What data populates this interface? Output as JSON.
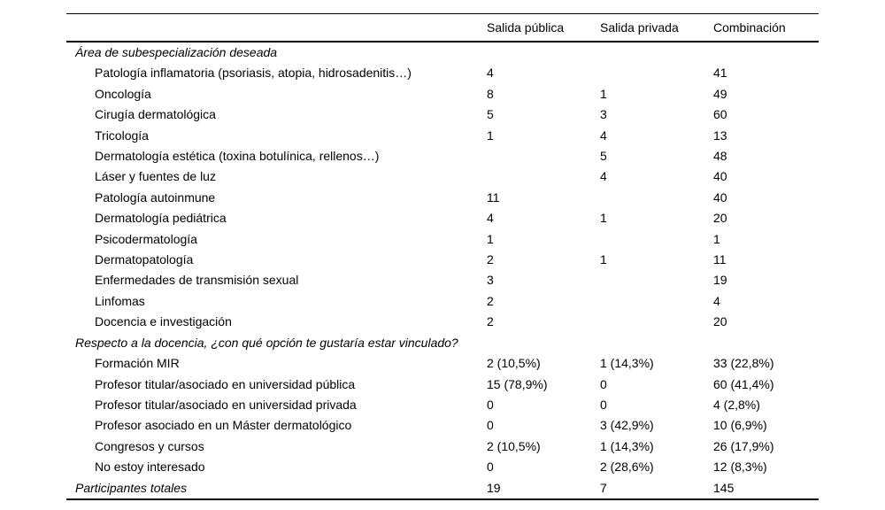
{
  "table": {
    "columns": [
      "Salida pública",
      "Salida privada",
      "Combinación"
    ],
    "sections": [
      {
        "header": "Área de subespecialización deseada",
        "rows": [
          [
            "Patología inflamatoria (psoriasis, atopia, hidrosadenitis…)",
            "4",
            "",
            "41"
          ],
          [
            "Oncología",
            "8",
            "1",
            "49"
          ],
          [
            "Cirugía dermatológica",
            "5",
            "3",
            "60"
          ],
          [
            "Tricología",
            "1",
            "4",
            "13"
          ],
          [
            "Dermatología estética (toxina botulínica, rellenos…)",
            "",
            "5",
            "48"
          ],
          [
            "Láser y fuentes de luz",
            "",
            "4",
            "40"
          ],
          [
            "Patología autoinmune",
            "11",
            "",
            "40"
          ],
          [
            "Dermatología pediátrica",
            "4",
            "1",
            "20"
          ],
          [
            "Psicodermatología",
            "1",
            "",
            "1"
          ],
          [
            "Dermatopatología",
            "2",
            "1",
            "11"
          ],
          [
            "Enfermedades de transmisión sexual",
            "3",
            "",
            "19"
          ],
          [
            "Linfomas",
            "2",
            "",
            "4"
          ],
          [
            "Docencia e investigación",
            "2",
            "",
            "20"
          ]
        ]
      },
      {
        "header": "Respecto a la docencia, ¿con qué opción te gustaría estar vinculado?",
        "rows": [
          [
            "Formación MIR",
            "2 (10,5%)",
            "1 (14,3%)",
            "33 (22,8%)"
          ],
          [
            "Profesor titular/asociado en universidad pública",
            "15 (78,9%)",
            "0",
            "60 (41,4%)"
          ],
          [
            "Profesor titular/asociado en universidad privada",
            "0",
            "0",
            "4 (2,8%)"
          ],
          [
            "Profesor asociado en un Máster dermatológico",
            "0",
            "3 (42,9%)",
            "10 (6,9%)"
          ],
          [
            "Congresos y cursos",
            "2 (10,5%)",
            "1 (14,3%)",
            "26 (17,9%)"
          ],
          [
            "No estoy interesado",
            "0",
            "2 (28,6%)",
            "12 (8,3%)"
          ]
        ]
      }
    ],
    "footer": [
      "Participantes totales",
      "19",
      "7",
      "145"
    ]
  }
}
